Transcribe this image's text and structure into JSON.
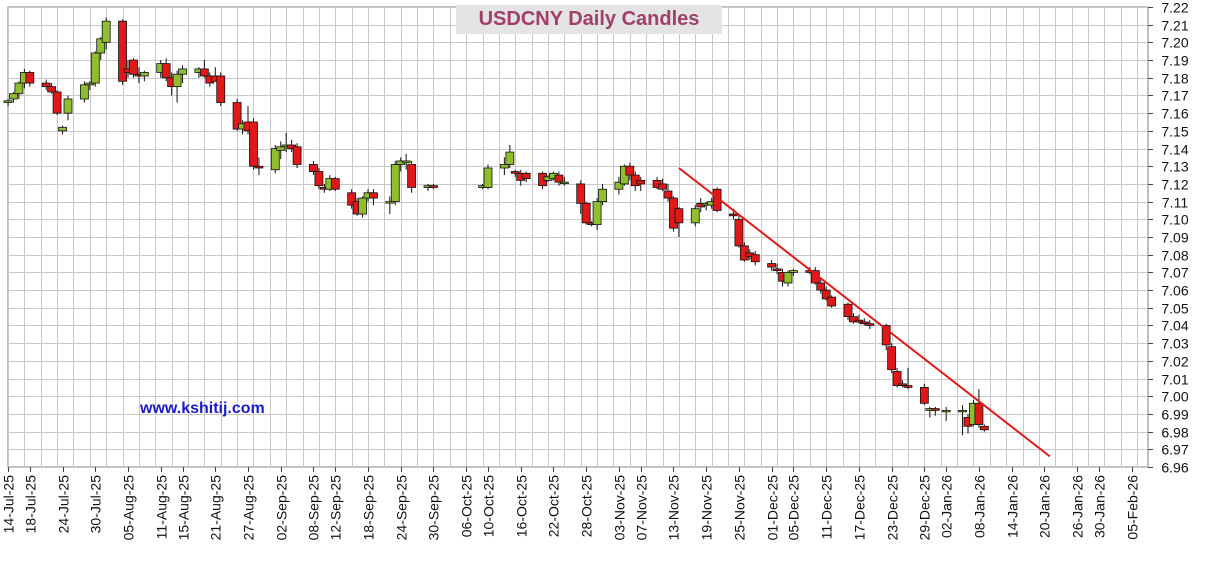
{
  "title": "USDCNY Daily Candles",
  "watermark": "www.kshitij.com",
  "colors": {
    "up": "#8fbf2f",
    "down": "#e01818",
    "trendline": "#e01818",
    "grid": "#c8c8c8",
    "title": "#a0406a",
    "title_bg": "#e4e4e4",
    "watermark": "#1a1acc"
  },
  "chart_data": {
    "type": "candlestick",
    "x_axis": {
      "type": "date",
      "range": [
        "2025-07-14",
        "2026-02-08"
      ],
      "tick_labels": [
        "14-Jul-25",
        "18-Jul-25",
        "24-Jul-25",
        "30-Jul-25",
        "05-Aug-25",
        "11-Aug-25",
        "15-Aug-25",
        "21-Aug-25",
        "27-Aug-25",
        "02-Sep-25",
        "08-Sep-25",
        "12-Sep-25",
        "18-Sep-25",
        "24-Sep-25",
        "30-Sep-25",
        "06-Oct-25",
        "10-Oct-25",
        "16-Oct-25",
        "22-Oct-25",
        "28-Oct-25",
        "03-Nov-25",
        "07-Nov-25",
        "13-Nov-25",
        "19-Nov-25",
        "25-Nov-25",
        "01-Dec-25",
        "05-Dec-25",
        "11-Dec-25",
        "17-Dec-25",
        "23-Dec-25",
        "29-Dec-25",
        "02-Jan-26",
        "08-Jan-26",
        "14-Jan-26",
        "20-Jan-26",
        "26-Jan-26",
        "30-Jan-26",
        "05-Feb-26"
      ]
    },
    "y_axis": {
      "position": "right",
      "range": [
        6.96,
        7.22
      ],
      "tick_step": 0.01,
      "tick_labels": [
        "6.96",
        "6.97",
        "6.98",
        "6.99",
        "7.00",
        "7.01",
        "7.02",
        "7.03",
        "7.04",
        "7.05",
        "7.06",
        "7.07",
        "7.08",
        "7.09",
        "7.10",
        "7.11",
        "7.12",
        "7.13",
        "7.14",
        "7.15",
        "7.16",
        "7.17",
        "7.18",
        "7.19",
        "7.20",
        "7.21",
        "7.22"
      ]
    },
    "grid": true,
    "candles": [
      {
        "date": "2025-07-14",
        "open": 7.166,
        "high": 7.168,
        "low": 7.164,
        "close": 7.167
      },
      {
        "date": "2025-07-15",
        "open": 7.168,
        "high": 7.172,
        "low": 7.166,
        "close": 7.171
      },
      {
        "date": "2025-07-16",
        "open": 7.171,
        "high": 7.178,
        "low": 7.168,
        "close": 7.177
      },
      {
        "date": "2025-07-17",
        "open": 7.177,
        "high": 7.185,
        "low": 7.174,
        "close": 7.183
      },
      {
        "date": "2025-07-18",
        "open": 7.183,
        "high": 7.184,
        "low": 7.175,
        "close": 7.177
      },
      {
        "date": "2025-07-21",
        "open": 7.177,
        "high": 7.179,
        "low": 7.173,
        "close": 7.175
      },
      {
        "date": "2025-07-22",
        "open": 7.175,
        "high": 7.177,
        "low": 7.171,
        "close": 7.172
      },
      {
        "date": "2025-07-23",
        "open": 7.172,
        "high": 7.173,
        "low": 7.159,
        "close": 7.16
      },
      {
        "date": "2025-07-24",
        "open": 7.15,
        "high": 7.153,
        "low": 7.148,
        "close": 7.152
      },
      {
        "date": "2025-07-25",
        "open": 7.16,
        "high": 7.17,
        "low": 7.156,
        "close": 7.168
      },
      {
        "date": "2025-07-28",
        "open": 7.168,
        "high": 7.178,
        "low": 7.166,
        "close": 7.176
      },
      {
        "date": "2025-07-29",
        "open": 7.176,
        "high": 7.178,
        "low": 7.173,
        "close": 7.177
      },
      {
        "date": "2025-07-30",
        "open": 7.177,
        "high": 7.195,
        "low": 7.175,
        "close": 7.194
      },
      {
        "date": "2025-07-31",
        "open": 7.194,
        "high": 7.203,
        "low": 7.19,
        "close": 7.202
      },
      {
        "date": "2025-08-01",
        "open": 7.2,
        "high": 7.214,
        "low": 7.196,
        "close": 7.212
      },
      {
        "date": "2025-08-04",
        "open": 7.212,
        "high": 7.213,
        "low": 7.176,
        "close": 7.178
      },
      {
        "date": "2025-08-05",
        "open": 7.185,
        "high": 7.19,
        "low": 7.18,
        "close": 7.183
      },
      {
        "date": "2025-08-06",
        "open": 7.19,
        "high": 7.191,
        "low": 7.18,
        "close": 7.182
      },
      {
        "date": "2025-08-07",
        "open": 7.182,
        "high": 7.186,
        "low": 7.177,
        "close": 7.181
      },
      {
        "date": "2025-08-08",
        "open": 7.181,
        "high": 7.184,
        "low": 7.178,
        "close": 7.183
      },
      {
        "date": "2025-08-11",
        "open": 7.183,
        "high": 7.19,
        "low": 7.18,
        "close": 7.188
      },
      {
        "date": "2025-08-12",
        "open": 7.188,
        "high": 7.191,
        "low": 7.178,
        "close": 7.18
      },
      {
        "date": "2025-08-13",
        "open": 7.18,
        "high": 7.183,
        "low": 7.17,
        "close": 7.175
      },
      {
        "date": "2025-08-14",
        "open": 7.175,
        "high": 7.184,
        "low": 7.166,
        "close": 7.182
      },
      {
        "date": "2025-08-15",
        "open": 7.182,
        "high": 7.187,
        "low": 7.177,
        "close": 7.185
      },
      {
        "date": "2025-08-18",
        "open": 7.183,
        "high": 7.186,
        "low": 7.18,
        "close": 7.185
      },
      {
        "date": "2025-08-19",
        "open": 7.185,
        "high": 7.19,
        "low": 7.18,
        "close": 7.181
      },
      {
        "date": "2025-08-20",
        "open": 7.181,
        "high": 7.183,
        "low": 7.175,
        "close": 7.177
      },
      {
        "date": "2025-08-21",
        "open": 7.181,
        "high": 7.186,
        "low": 7.178,
        "close": 7.178
      },
      {
        "date": "2025-08-22",
        "open": 7.181,
        "high": 7.183,
        "low": 7.164,
        "close": 7.166
      },
      {
        "date": "2025-08-25",
        "open": 7.166,
        "high": 7.168,
        "low": 7.15,
        "close": 7.151
      },
      {
        "date": "2025-08-26",
        "open": 7.151,
        "high": 7.156,
        "low": 7.148,
        "close": 7.154
      },
      {
        "date": "2025-08-27",
        "open": 7.155,
        "high": 7.164,
        "low": 7.148,
        "close": 7.15
      },
      {
        "date": "2025-08-28",
        "open": 7.155,
        "high": 7.157,
        "low": 7.128,
        "close": 7.13
      },
      {
        "date": "2025-08-29",
        "open": 7.13,
        "high": 7.135,
        "low": 7.125,
        "close": 7.129
      },
      {
        "date": "2025-09-01",
        "open": 7.128,
        "high": 7.142,
        "low": 7.126,
        "close": 7.14
      },
      {
        "date": "2025-09-02",
        "open": 7.139,
        "high": 7.144,
        "low": 7.134,
        "close": 7.141
      },
      {
        "date": "2025-09-03",
        "open": 7.141,
        "high": 7.149,
        "low": 7.138,
        "close": 7.142
      },
      {
        "date": "2025-09-04",
        "open": 7.142,
        "high": 7.145,
        "low": 7.138,
        "close": 7.14
      },
      {
        "date": "2025-09-05",
        "open": 7.141,
        "high": 7.143,
        "low": 7.129,
        "close": 7.131
      },
      {
        "date": "2025-09-08",
        "open": 7.131,
        "high": 7.133,
        "low": 7.125,
        "close": 7.127
      },
      {
        "date": "2025-09-09",
        "open": 7.127,
        "high": 7.129,
        "low": 7.117,
        "close": 7.119
      },
      {
        "date": "2025-09-10",
        "open": 7.118,
        "high": 7.12,
        "low": 7.115,
        "close": 7.117
      },
      {
        "date": "2025-09-11",
        "open": 7.117,
        "high": 7.125,
        "low": 7.116,
        "close": 7.123
      },
      {
        "date": "2025-09-12",
        "open": 7.123,
        "high": 7.124,
        "low": 7.116,
        "close": 7.117
      },
      {
        "date": "2025-09-15",
        "open": 7.115,
        "high": 7.117,
        "low": 7.106,
        "close": 7.108
      },
      {
        "date": "2025-09-16",
        "open": 7.11,
        "high": 7.112,
        "low": 7.102,
        "close": 7.103
      },
      {
        "date": "2025-09-17",
        "open": 7.103,
        "high": 7.113,
        "low": 7.101,
        "close": 7.112
      },
      {
        "date": "2025-09-18",
        "open": 7.112,
        "high": 7.117,
        "low": 7.11,
        "close": 7.115
      },
      {
        "date": "2025-09-19",
        "open": 7.115,
        "high": 7.117,
        "low": 7.108,
        "close": 7.112
      },
      {
        "date": "2025-09-22",
        "open": 7.11,
        "high": 7.113,
        "low": 7.103,
        "close": 7.11
      },
      {
        "date": "2025-09-23",
        "open": 7.11,
        "high": 7.133,
        "low": 7.108,
        "close": 7.131
      },
      {
        "date": "2025-09-24",
        "open": 7.131,
        "high": 7.135,
        "low": 7.127,
        "close": 7.133
      },
      {
        "date": "2025-09-25",
        "open": 7.132,
        "high": 7.137,
        "low": 7.128,
        "close": 7.133
      },
      {
        "date": "2025-09-26",
        "open": 7.131,
        "high": 7.133,
        "low": 7.115,
        "close": 7.118
      },
      {
        "date": "2025-09-29",
        "open": 7.118,
        "high": 7.12,
        "low": 7.116,
        "close": 7.119
      },
      {
        "date": "2025-09-30",
        "open": 7.119,
        "high": 7.12,
        "low": 7.117,
        "close": 7.118
      },
      {
        "date": "2025-10-09",
        "open": 7.118,
        "high": 7.12,
        "low": 7.117,
        "close": 7.119
      },
      {
        "date": "2025-10-10",
        "open": 7.118,
        "high": 7.131,
        "low": 7.117,
        "close": 7.129
      },
      {
        "date": "2025-10-13",
        "open": 7.129,
        "high": 7.135,
        "low": 7.125,
        "close": 7.131
      },
      {
        "date": "2025-10-14",
        "open": 7.131,
        "high": 7.142,
        "low": 7.129,
        "close": 7.138
      },
      {
        "date": "2025-10-15",
        "open": 7.127,
        "high": 7.128,
        "low": 7.124,
        "close": 7.126
      },
      {
        "date": "2025-10-16",
        "open": 7.126,
        "high": 7.128,
        "low": 7.119,
        "close": 7.122
      },
      {
        "date": "2025-10-17",
        "open": 7.126,
        "high": 7.127,
        "low": 7.121,
        "close": 7.123
      },
      {
        "date": "2025-10-20",
        "open": 7.126,
        "high": 7.127,
        "low": 7.117,
        "close": 7.119
      },
      {
        "date": "2025-10-21",
        "open": 7.122,
        "high": 7.125,
        "low": 7.121,
        "close": 7.124
      },
      {
        "date": "2025-10-22",
        "open": 7.123,
        "high": 7.127,
        "low": 7.122,
        "close": 7.126
      },
      {
        "date": "2025-10-23",
        "open": 7.125,
        "high": 7.127,
        "low": 7.119,
        "close": 7.121
      },
      {
        "date": "2025-10-24",
        "open": 7.121,
        "high": 7.124,
        "low": 7.119,
        "close": 7.121
      },
      {
        "date": "2025-10-27",
        "open": 7.12,
        "high": 7.122,
        "low": 7.103,
        "close": 7.109
      },
      {
        "date": "2025-10-28",
        "open": 7.109,
        "high": 7.11,
        "low": 7.097,
        "close": 7.098
      },
      {
        "date": "2025-10-29",
        "open": 7.098,
        "high": 7.099,
        "low": 7.096,
        "close": 7.097
      },
      {
        "date": "2025-10-30",
        "open": 7.097,
        "high": 7.112,
        "low": 7.094,
        "close": 7.11
      },
      {
        "date": "2025-10-31",
        "open": 7.11,
        "high": 7.12,
        "low": 7.108,
        "close": 7.117
      },
      {
        "date": "2025-11-03",
        "open": 7.117,
        "high": 7.124,
        "low": 7.114,
        "close": 7.121
      },
      {
        "date": "2025-11-04",
        "open": 7.12,
        "high": 7.131,
        "low": 7.119,
        "close": 7.13
      },
      {
        "date": "2025-11-05",
        "open": 7.13,
        "high": 7.132,
        "low": 7.122,
        "close": 7.125
      },
      {
        "date": "2025-11-06",
        "open": 7.125,
        "high": 7.127,
        "low": 7.116,
        "close": 7.119
      },
      {
        "date": "2025-11-07",
        "open": 7.122,
        "high": 7.124,
        "low": 7.116,
        "close": 7.12
      },
      {
        "date": "2025-11-10",
        "open": 7.122,
        "high": 7.124,
        "low": 7.117,
        "close": 7.118
      },
      {
        "date": "2025-11-11",
        "open": 7.12,
        "high": 7.123,
        "low": 7.116,
        "close": 7.117
      },
      {
        "date": "2025-11-12",
        "open": 7.116,
        "high": 7.12,
        "low": 7.11,
        "close": 7.112
      },
      {
        "date": "2025-11-13",
        "open": 7.112,
        "high": 7.113,
        "low": 7.093,
        "close": 7.095
      },
      {
        "date": "2025-11-14",
        "open": 7.106,
        "high": 7.107,
        "low": 7.09,
        "close": 7.098
      },
      {
        "date": "2025-11-17",
        "open": 7.098,
        "high": 7.108,
        "low": 7.096,
        "close": 7.106
      },
      {
        "date": "2025-11-18",
        "open": 7.109,
        "high": 7.112,
        "low": 7.104,
        "close": 7.107
      },
      {
        "date": "2025-11-19",
        "open": 7.108,
        "high": 7.11,
        "low": 7.105,
        "close": 7.109
      },
      {
        "date": "2025-11-20",
        "open": 7.108,
        "high": 7.112,
        "low": 7.106,
        "close": 7.11
      },
      {
        "date": "2025-11-21",
        "open": 7.117,
        "high": 7.118,
        "low": 7.104,
        "close": 7.105
      },
      {
        "date": "2025-11-24",
        "open": 7.103,
        "high": 7.106,
        "low": 7.1,
        "close": 7.102
      },
      {
        "date": "2025-11-25",
        "open": 7.1,
        "high": 7.102,
        "low": 7.084,
        "close": 7.085
      },
      {
        "date": "2025-11-26",
        "open": 7.085,
        "high": 7.087,
        "low": 7.076,
        "close": 7.077
      },
      {
        "date": "2025-11-27",
        "open": 7.081,
        "high": 7.083,
        "low": 7.077,
        "close": 7.079
      },
      {
        "date": "2025-11-28",
        "open": 7.08,
        "high": 7.082,
        "low": 7.074,
        "close": 7.076
      },
      {
        "date": "2025-12-01",
        "open": 7.075,
        "high": 7.077,
        "low": 7.071,
        "close": 7.073
      },
      {
        "date": "2025-12-02",
        "open": 7.072,
        "high": 7.075,
        "low": 7.069,
        "close": 7.071
      },
      {
        "date": "2025-12-03",
        "open": 7.07,
        "high": 7.072,
        "low": 7.062,
        "close": 7.065
      },
      {
        "date": "2025-12-04",
        "open": 7.064,
        "high": 7.071,
        "low": 7.062,
        "close": 7.07
      },
      {
        "date": "2025-12-05",
        "open": 7.07,
        "high": 7.072,
        "low": 7.068,
        "close": 7.071
      },
      {
        "date": "2025-12-08",
        "open": 7.071,
        "high": 7.073,
        "low": 7.069,
        "close": 7.07
      },
      {
        "date": "2025-12-09",
        "open": 7.071,
        "high": 7.073,
        "low": 7.063,
        "close": 7.064
      },
      {
        "date": "2025-12-10",
        "open": 7.064,
        "high": 7.066,
        "low": 7.058,
        "close": 7.06
      },
      {
        "date": "2025-12-11",
        "open": 7.06,
        "high": 7.062,
        "low": 7.054,
        "close": 7.055
      },
      {
        "date": "2025-12-12",
        "open": 7.056,
        "high": 7.057,
        "low": 7.05,
        "close": 7.051
      },
      {
        "date": "2025-12-15",
        "open": 7.052,
        "high": 7.053,
        "low": 7.043,
        "close": 7.045
      },
      {
        "date": "2025-12-16",
        "open": 7.045,
        "high": 7.047,
        "low": 7.041,
        "close": 7.042
      },
      {
        "date": "2025-12-17",
        "open": 7.043,
        "high": 7.046,
        "low": 7.041,
        "close": 7.042
      },
      {
        "date": "2025-12-18",
        "open": 7.042,
        "high": 7.044,
        "low": 7.04,
        "close": 7.041
      },
      {
        "date": "2025-12-19",
        "open": 7.041,
        "high": 7.043,
        "low": 7.038,
        "close": 7.04
      },
      {
        "date": "2025-12-22",
        "open": 7.04,
        "high": 7.041,
        "low": 7.026,
        "close": 7.029
      },
      {
        "date": "2025-12-23",
        "open": 7.028,
        "high": 7.03,
        "low": 7.013,
        "close": 7.015
      },
      {
        "date": "2025-12-24",
        "open": 7.014,
        "high": 7.016,
        "low": 7.005,
        "close": 7.006
      },
      {
        "date": "2025-12-25",
        "open": 7.007,
        "high": 7.009,
        "low": 7.005,
        "close": 7.006
      },
      {
        "date": "2025-12-26",
        "open": 7.006,
        "high": 7.016,
        "low": 7.004,
        "close": 7.005
      },
      {
        "date": "2025-12-29",
        "open": 7.005,
        "high": 7.007,
        "low": 6.995,
        "close": 6.996
      },
      {
        "date": "2025-12-30",
        "open": 6.992,
        "high": 6.994,
        "low": 6.988,
        "close": 6.993
      },
      {
        "date": "2025-12-31",
        "open": 6.993,
        "high": 6.994,
        "low": 6.989,
        "close": 6.992
      },
      {
        "date": "2026-01-02",
        "open": 6.992,
        "high": 6.994,
        "low": 6.986,
        "close": 6.992
      },
      {
        "date": "2026-01-05",
        "open": 6.992,
        "high": 6.995,
        "low": 6.978,
        "close": 6.992
      },
      {
        "date": "2026-01-06",
        "open": 6.988,
        "high": 6.99,
        "low": 6.979,
        "close": 6.983
      },
      {
        "date": "2026-01-07",
        "open": 6.984,
        "high": 6.998,
        "low": 6.983,
        "close": 6.996
      },
      {
        "date": "2026-01-08",
        "open": 6.996,
        "high": 7.004,
        "low": 6.982,
        "close": 6.984
      },
      {
        "date": "2026-01-09",
        "open": 6.983,
        "high": 6.984,
        "low": 6.98,
        "close": 6.981
      }
    ],
    "trendline": {
      "from": {
        "date": "2025-11-14",
        "value": 7.129
      },
      "to": {
        "date": "2026-01-21",
        "value": 6.966
      }
    }
  }
}
